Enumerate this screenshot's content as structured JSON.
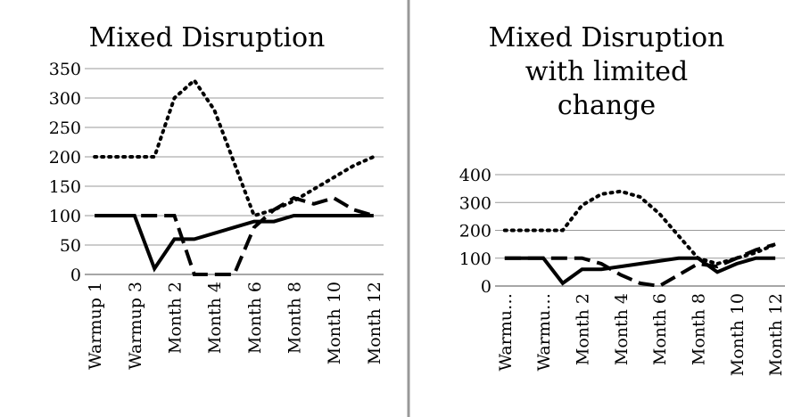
{
  "chart_data": [
    {
      "type": "line",
      "title": [
        "Mixed Disruption"
      ],
      "categories": [
        "Warmup 1",
        null,
        "Warmup 3",
        null,
        "Month 2",
        null,
        "Month 4",
        null,
        "Month 6",
        null,
        "Month 8",
        null,
        "Month 10",
        null,
        "Month 12"
      ],
      "series": [
        {
          "color": "#000000",
          "dash": "dot",
          "values": [
            200,
            200,
            200,
            200,
            300,
            330,
            280,
            190,
            100,
            110,
            125,
            145,
            165,
            185,
            200
          ]
        },
        {
          "color": "#000000",
          "dash": "solid",
          "values": [
            100,
            100,
            100,
            10,
            60,
            60,
            70,
            80,
            90,
            90,
            100,
            100,
            100,
            100,
            100
          ]
        },
        {
          "color": "#000000",
          "dash": "dash",
          "values": [
            100,
            100,
            100,
            100,
            100,
            0,
            0,
            0,
            80,
            110,
            130,
            120,
            130,
            110,
            100
          ]
        }
      ],
      "ylim": [
        0,
        350
      ],
      "yticks": [
        0,
        50,
        100,
        150,
        200,
        250,
        300,
        350
      ],
      "grid": true
    },
    {
      "type": "line",
      "title": [
        "Mixed Disruption",
        "with limited",
        "change"
      ],
      "categories": [
        "Warmu…",
        null,
        "Warmu…",
        null,
        "Month 2",
        null,
        "Month 4",
        null,
        "Month 6",
        null,
        "Month 8",
        null,
        "Month 10",
        null,
        "Month 12"
      ],
      "series": [
        {
          "color": "#000000",
          "dash": "dot",
          "values": [
            200,
            200,
            200,
            200,
            290,
            330,
            340,
            320,
            260,
            180,
            100,
            80,
            100,
            120,
            150
          ]
        },
        {
          "color": "#000000",
          "dash": "solid",
          "values": [
            100,
            100,
            100,
            10,
            60,
            60,
            70,
            80,
            90,
            100,
            100,
            50,
            80,
            100,
            100
          ]
        },
        {
          "color": "#000000",
          "dash": "dash",
          "values": [
            100,
            100,
            100,
            100,
            100,
            80,
            40,
            10,
            0,
            40,
            80,
            70,
            100,
            130,
            150
          ]
        }
      ],
      "ylim": [
        0,
        400
      ],
      "yticks": [
        0,
        100,
        200,
        300,
        400
      ],
      "grid": true
    }
  ]
}
